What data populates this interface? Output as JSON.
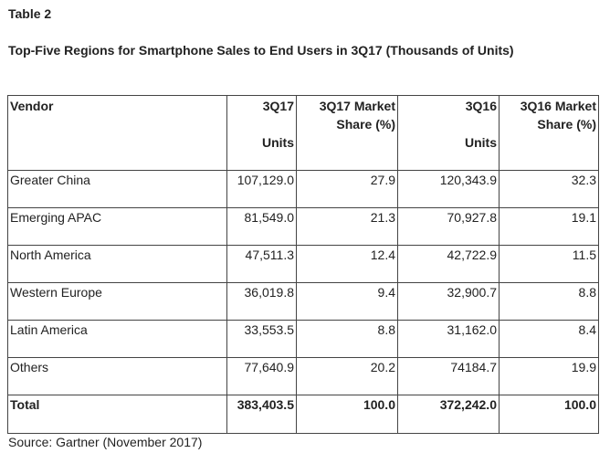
{
  "caption": "Table 2",
  "heading": "Top-Five Regions for Smartphone Sales to End Users in 3Q17 (Thousands of Units)",
  "table": {
    "headers": {
      "vendor": "Vendor",
      "q17_units_top": "3Q17",
      "q17_units_bottom": "Units",
      "q17_share": "3Q17 Market Share (%)",
      "q16_units_top": "3Q16",
      "q16_units_bottom": "Units",
      "q16_share": "3Q16 Market Share (%)"
    },
    "rows": [
      {
        "vendor": "Greater China",
        "q17_units": "107,129.0",
        "q17_share": "27.9",
        "q16_units": "120,343.9",
        "q16_share": "32.3"
      },
      {
        "vendor": "Emerging APAC",
        "q17_units": "81,549.0",
        "q17_share": "21.3",
        "q16_units": "70,927.8",
        "q16_share": "19.1"
      },
      {
        "vendor": "North America",
        "q17_units": "47,511.3",
        "q17_share": "12.4",
        "q16_units": "42,722.9",
        "q16_share": "11.5"
      },
      {
        "vendor": "Western Europe",
        "q17_units": "36,019.8",
        "q17_share": "9.4",
        "q16_units": "32,900.7",
        "q16_share": "8.8"
      },
      {
        "vendor": "Latin America",
        "q17_units": "33,553.5",
        "q17_share": "8.8",
        "q16_units": "31,162.0",
        "q16_share": "8.4"
      },
      {
        "vendor": "Others",
        "q17_units": "77,640.9",
        "q17_share": "20.2",
        "q16_units": "74184.7",
        "q16_share": "19.9"
      }
    ],
    "total": {
      "vendor": "Total",
      "q17_units": "383,403.5",
      "q17_share": "100.0",
      "q16_units": "372,242.0",
      "q16_share": "100.0"
    }
  },
  "source": "Source: Gartner (November 2017)"
}
